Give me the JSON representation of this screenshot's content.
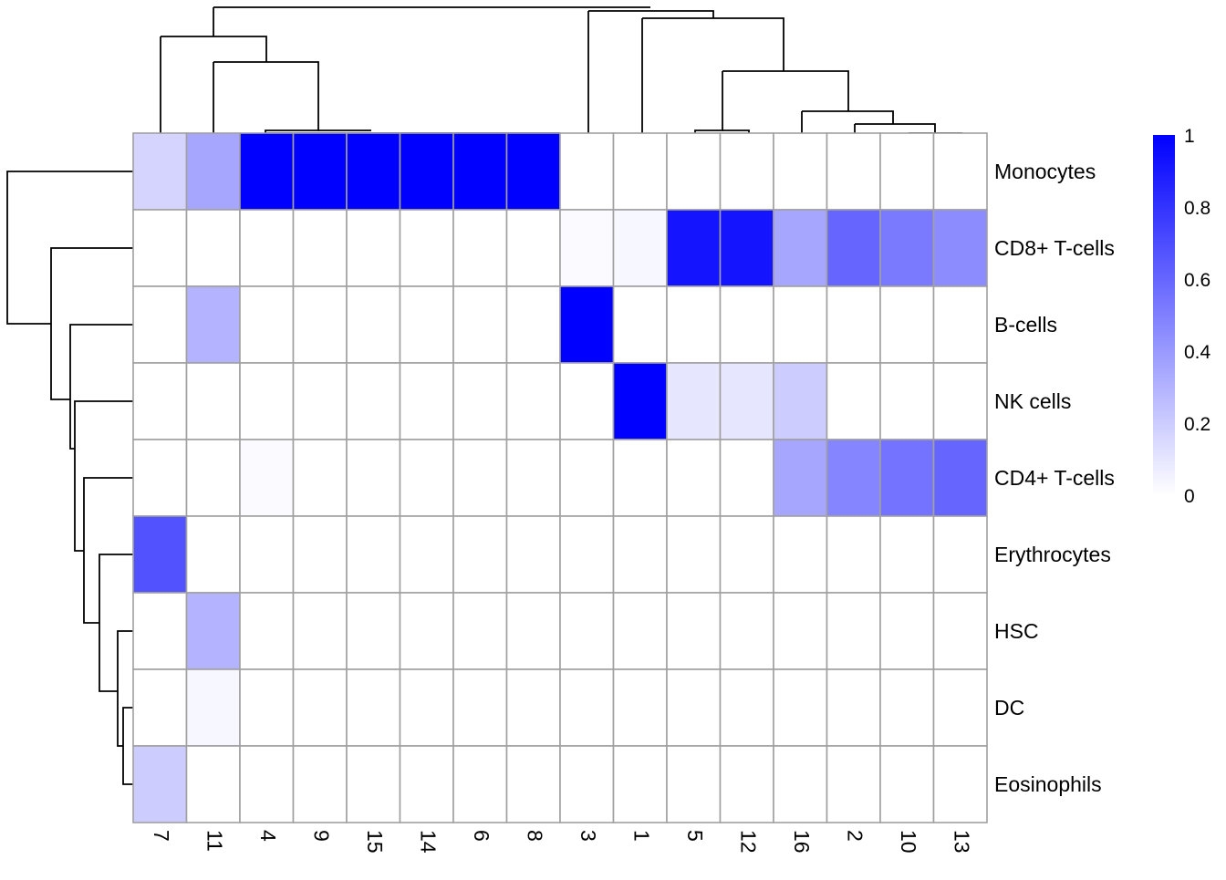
{
  "chart_data": {
    "type": "heatmap",
    "title": "",
    "xlabel": "",
    "ylabel": "",
    "columns": [
      "7",
      "11",
      "4",
      "9",
      "15",
      "14",
      "6",
      "8",
      "3",
      "1",
      "5",
      "12",
      "16",
      "2",
      "10",
      "13"
    ],
    "rows": [
      "Monocytes",
      "CD8+ T-cells",
      "B-cells",
      "NK cells",
      "CD4+ T-cells",
      "Erythrocytes",
      "HSC",
      "DC",
      "Eosinophils"
    ],
    "values": [
      [
        0.17,
        0.35,
        1.0,
        1.0,
        1.0,
        1.0,
        1.0,
        1.0,
        0.0,
        0.0,
        0.0,
        0.0,
        0.0,
        0.0,
        0.0,
        0.0
      ],
      [
        0.0,
        0.0,
        0.0,
        0.0,
        0.0,
        0.0,
        0.0,
        0.0,
        0.02,
        0.03,
        0.92,
        0.92,
        0.35,
        0.6,
        0.52,
        0.45
      ],
      [
        0.0,
        0.3,
        0.0,
        0.0,
        0.0,
        0.0,
        0.0,
        0.0,
        1.0,
        0.0,
        0.0,
        0.0,
        0.0,
        0.0,
        0.0,
        0.0
      ],
      [
        0.0,
        0.0,
        0.0,
        0.0,
        0.0,
        0.0,
        0.0,
        0.0,
        0.0,
        1.0,
        0.1,
        0.1,
        0.2,
        0.0,
        0.0,
        0.0
      ],
      [
        0.0,
        0.0,
        0.02,
        0.0,
        0.0,
        0.0,
        0.0,
        0.0,
        0.0,
        0.0,
        0.0,
        0.0,
        0.35,
        0.48,
        0.55,
        0.6
      ],
      [
        0.68,
        0.0,
        0.0,
        0.0,
        0.0,
        0.0,
        0.0,
        0.0,
        0.0,
        0.0,
        0.0,
        0.0,
        0.0,
        0.0,
        0.0,
        0.0
      ],
      [
        0.0,
        0.3,
        0.0,
        0.0,
        0.0,
        0.0,
        0.0,
        0.0,
        0.0,
        0.0,
        0.0,
        0.0,
        0.0,
        0.0,
        0.0,
        0.0
      ],
      [
        0.0,
        0.03,
        0.0,
        0.0,
        0.0,
        0.0,
        0.0,
        0.0,
        0.0,
        0.0,
        0.0,
        0.0,
        0.0,
        0.0,
        0.0,
        0.0
      ],
      [
        0.2,
        0.0,
        0.0,
        0.0,
        0.0,
        0.0,
        0.0,
        0.0,
        0.0,
        0.0,
        0.0,
        0.0,
        0.0,
        0.0,
        0.0,
        0.0
      ]
    ],
    "color_scale": {
      "min": 0,
      "max": 1,
      "low_color": "#ffffff",
      "high_color": "#0000ff"
    },
    "legend": {
      "placement": "right",
      "ticks": [
        "0",
        "0.2",
        "0.4",
        "0.6",
        "0.8",
        "1"
      ]
    },
    "column_dendrogram": true,
    "row_dendrogram": true,
    "grid_color": "#a0a0a0"
  }
}
